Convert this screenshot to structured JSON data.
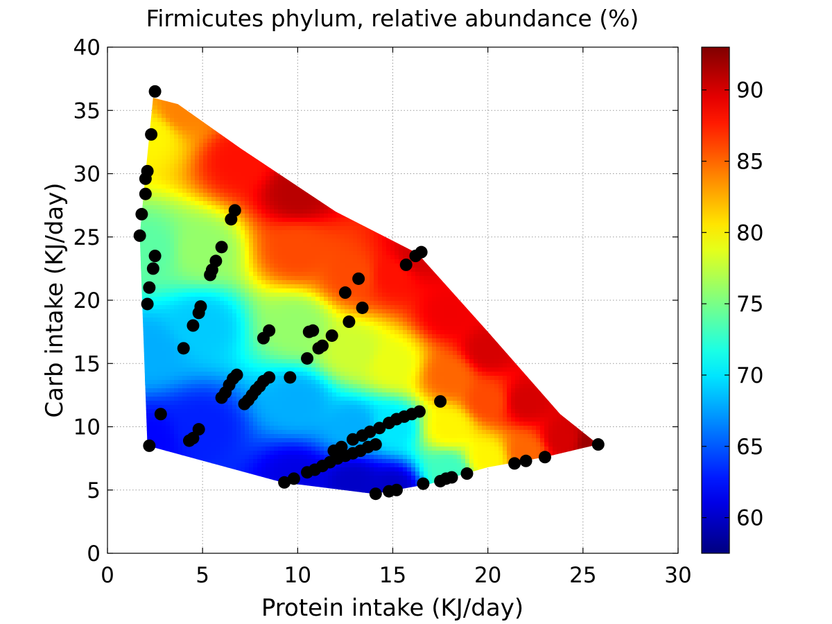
{
  "chart_data": {
    "type": "heatmap",
    "title": "Firmicutes phylum, relative abundance (%)",
    "xlabel": "Protein intake (KJ/day)",
    "ylabel": "Carb intake (KJ/day)",
    "xlim": [
      0,
      30
    ],
    "ylim": [
      0,
      40
    ],
    "xticks": [
      "0",
      "5",
      "10",
      "15",
      "20",
      "25",
      "30"
    ],
    "yticks": [
      "0",
      "5",
      "10",
      "15",
      "20",
      "25",
      "30",
      "35",
      "40"
    ],
    "grid": true,
    "colormap": "jet",
    "colorbar": {
      "range": [
        57.5,
        93
      ],
      "ticks": [
        "60",
        "65",
        "70",
        "75",
        "80",
        "85",
        "90"
      ]
    },
    "surface": {
      "description_values": "fitted response surface over convex hull of intake points",
      "hull": [
        [
          2.4,
          36.0
        ],
        [
          3.7,
          35.5
        ],
        [
          7.0,
          32.0
        ],
        [
          12.0,
          27.0
        ],
        [
          16.3,
          23.7
        ],
        [
          20.0,
          17.5
        ],
        [
          23.8,
          11.0
        ],
        [
          25.8,
          8.6
        ],
        [
          23.0,
          7.6
        ],
        [
          20.0,
          6.8
        ],
        [
          17.0,
          5.5
        ],
        [
          14.0,
          4.7
        ],
        [
          9.2,
          5.6
        ],
        [
          2.1,
          8.5
        ],
        [
          1.7,
          25.1
        ],
        [
          2.0,
          30.0
        ]
      ],
      "field_points": [
        {
          "x": 2.2,
          "y": 8.8,
          "v": 62
        },
        {
          "x": 2.2,
          "y": 16,
          "v": 68
        },
        {
          "x": 2.2,
          "y": 24,
          "v": 74
        },
        {
          "x": 2.3,
          "y": 33,
          "v": 80
        },
        {
          "x": 4.0,
          "y": 35,
          "v": 84
        },
        {
          "x": 5,
          "y": 10,
          "v": 63
        },
        {
          "x": 5,
          "y": 18,
          "v": 69
        },
        {
          "x": 5,
          "y": 24,
          "v": 76
        },
        {
          "x": 7,
          "y": 31,
          "v": 88
        },
        {
          "x": 10,
          "y": 6,
          "v": 61
        },
        {
          "x": 10,
          "y": 12,
          "v": 68
        },
        {
          "x": 10,
          "y": 18,
          "v": 76
        },
        {
          "x": 10,
          "y": 24,
          "v": 86
        },
        {
          "x": 10,
          "y": 28.5,
          "v": 91
        },
        {
          "x": 13,
          "y": 5.5,
          "v": 60
        },
        {
          "x": 13,
          "y": 10,
          "v": 68
        },
        {
          "x": 13,
          "y": 16,
          "v": 78
        },
        {
          "x": 13,
          "y": 22,
          "v": 86
        },
        {
          "x": 15,
          "y": 5,
          "v": 60
        },
        {
          "x": 15,
          "y": 10,
          "v": 70
        },
        {
          "x": 15,
          "y": 15,
          "v": 79
        },
        {
          "x": 15,
          "y": 22,
          "v": 88
        },
        {
          "x": 16.3,
          "y": 23.5,
          "v": 90
        },
        {
          "x": 18,
          "y": 6.5,
          "v": 73
        },
        {
          "x": 18,
          "y": 10,
          "v": 80
        },
        {
          "x": 18,
          "y": 14,
          "v": 85
        },
        {
          "x": 18,
          "y": 19,
          "v": 89
        },
        {
          "x": 20,
          "y": 7.5,
          "v": 80
        },
        {
          "x": 20,
          "y": 12,
          "v": 86
        },
        {
          "x": 20,
          "y": 16,
          "v": 90
        },
        {
          "x": 22,
          "y": 8,
          "v": 85
        },
        {
          "x": 22,
          "y": 12,
          "v": 90
        },
        {
          "x": 24,
          "y": 9,
          "v": 90
        },
        {
          "x": 25.5,
          "y": 8.7,
          "v": 92
        }
      ]
    },
    "scatter": {
      "color": "#000000",
      "points": [
        [
          2.5,
          36.5
        ],
        [
          2.3,
          33.1
        ],
        [
          2.1,
          30.2
        ],
        [
          2.0,
          29.6
        ],
        [
          2.0,
          28.4
        ],
        [
          1.8,
          26.8
        ],
        [
          1.7,
          25.1
        ],
        [
          2.5,
          23.5
        ],
        [
          2.4,
          22.5
        ],
        [
          2.2,
          21.0
        ],
        [
          2.1,
          19.7
        ],
        [
          2.2,
          8.5
        ],
        [
          2.8,
          11.0
        ],
        [
          4.0,
          16.2
        ],
        [
          4.5,
          18.0
        ],
        [
          4.8,
          19.0
        ],
        [
          4.9,
          19.5
        ],
        [
          4.3,
          8.9
        ],
        [
          4.5,
          9.1
        ],
        [
          4.8,
          9.8
        ],
        [
          5.4,
          22.0
        ],
        [
          5.5,
          22.4
        ],
        [
          5.7,
          23.1
        ],
        [
          6.0,
          24.2
        ],
        [
          6.5,
          26.4
        ],
        [
          6.7,
          27.1
        ],
        [
          6.0,
          12.3
        ],
        [
          6.2,
          12.7
        ],
        [
          6.4,
          13.3
        ],
        [
          6.6,
          13.8
        ],
        [
          6.8,
          14.1
        ],
        [
          7.2,
          11.8
        ],
        [
          7.4,
          12.1
        ],
        [
          7.6,
          12.5
        ],
        [
          7.8,
          12.9
        ],
        [
          8.0,
          13.2
        ],
        [
          8.2,
          13.6
        ],
        [
          8.5,
          13.9
        ],
        [
          8.2,
          17.0
        ],
        [
          8.5,
          17.6
        ],
        [
          9.6,
          13.9
        ],
        [
          10.5,
          15.4
        ],
        [
          10.6,
          17.5
        ],
        [
          10.8,
          17.6
        ],
        [
          11.1,
          16.2
        ],
        [
          11.3,
          16.4
        ],
        [
          11.8,
          17.2
        ],
        [
          12.5,
          20.6
        ],
        [
          12.7,
          18.3
        ],
        [
          13.2,
          21.7
        ],
        [
          13.4,
          19.4
        ],
        [
          9.3,
          5.6
        ],
        [
          9.8,
          5.9
        ],
        [
          10.5,
          6.4
        ],
        [
          10.9,
          6.6
        ],
        [
          11.3,
          6.9
        ],
        [
          11.7,
          7.2
        ],
        [
          12.1,
          7.5
        ],
        [
          12.5,
          7.7
        ],
        [
          12.9,
          7.9
        ],
        [
          13.3,
          8.1
        ],
        [
          13.7,
          8.4
        ],
        [
          14.1,
          8.6
        ],
        [
          11.9,
          8.1
        ],
        [
          12.3,
          8.4
        ],
        [
          12.9,
          9.0
        ],
        [
          13.4,
          9.3
        ],
        [
          13.8,
          9.6
        ],
        [
          14.3,
          9.9
        ],
        [
          14.8,
          10.3
        ],
        [
          15.2,
          10.6
        ],
        [
          15.6,
          10.8
        ],
        [
          16.0,
          11.0
        ],
        [
          16.4,
          11.2
        ],
        [
          14.1,
          4.7
        ],
        [
          14.8,
          4.9
        ],
        [
          15.2,
          5.0
        ],
        [
          16.6,
          5.5
        ],
        [
          17.5,
          5.7
        ],
        [
          17.8,
          5.9
        ],
        [
          18.1,
          6.0
        ],
        [
          18.9,
          6.3
        ],
        [
          17.5,
          12.0
        ],
        [
          15.7,
          22.8
        ],
        [
          16.2,
          23.5
        ],
        [
          16.5,
          23.8
        ],
        [
          21.4,
          7.1
        ],
        [
          22.0,
          7.3
        ],
        [
          23.0,
          7.6
        ],
        [
          25.8,
          8.6
        ]
      ]
    }
  }
}
